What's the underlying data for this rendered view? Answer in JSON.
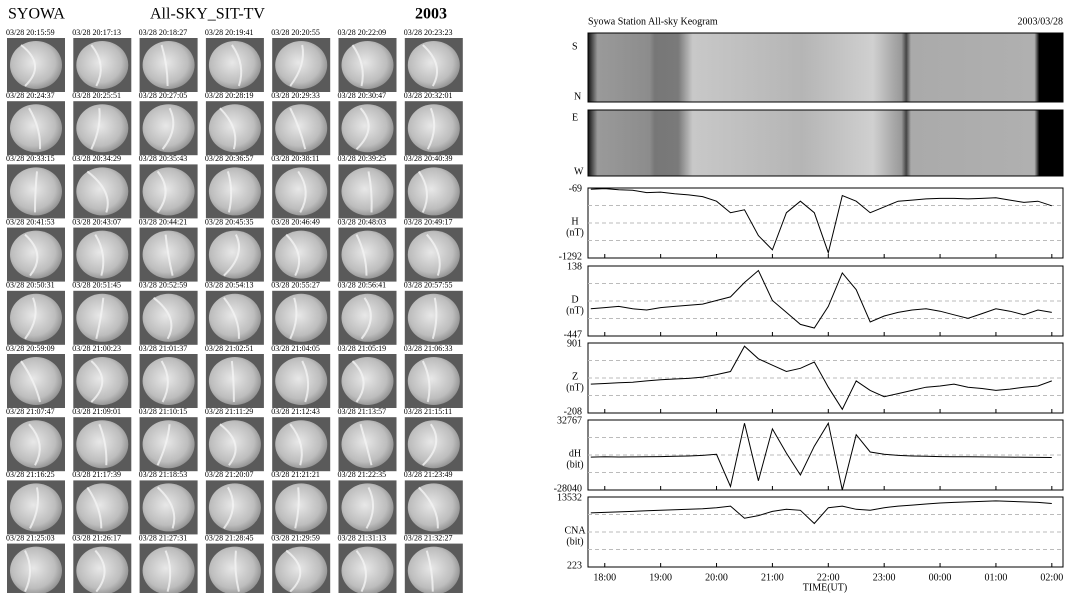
{
  "allsky": {
    "station": "SYOWA",
    "title": "All-SKY_SIT-TV",
    "year": "2003",
    "frames": [
      "03/28 20:15:59",
      "03/28 20:17:13",
      "03/28 20:18:27",
      "03/28 20:19:41",
      "03/28 20:20:55",
      "03/28 20:22:09",
      "03/28 20:23:23",
      "03/28 20:24:37",
      "03/28 20:25:51",
      "03/28 20:27:05",
      "03/28 20:28:19",
      "03/28 20:29:33",
      "03/28 20:30:47",
      "03/28 20:32:01",
      "03/28 20:33:15",
      "03/28 20:34:29",
      "03/28 20:35:43",
      "03/28 20:36:57",
      "03/28 20:38:11",
      "03/28 20:39:25",
      "03/28 20:40:39",
      "03/28 20:41:53",
      "03/28 20:43:07",
      "03/28 20:44:21",
      "03/28 20:45:35",
      "03/28 20:46:49",
      "03/28 20:48:03",
      "03/28 20:49:17",
      "03/28 20:50:31",
      "03/28 20:51:45",
      "03/28 20:52:59",
      "03/28 20:54:13",
      "03/28 20:55:27",
      "03/28 20:56:41",
      "03/28 20:57:55",
      "03/28 20:59:09",
      "03/28 21:00:23",
      "03/28 21:01:37",
      "03/28 21:02:51",
      "03/28 21:04:05",
      "03/28 21:05:19",
      "03/28 21:06:33",
      "03/28 21:07:47",
      "03/28 21:09:01",
      "03/28 21:10:15",
      "03/28 21:11:29",
      "03/28 21:12:43",
      "03/28 21:13:57",
      "03/28 21:15:11",
      "03/28 21:16:25",
      "03/28 21:17:39",
      "03/28 21:18:53",
      "03/28 21:20:07",
      "03/28 21:21:21",
      "03/28 21:22:35",
      "03/28 21:23:49",
      "03/28 21:25:03",
      "03/28 21:26:17",
      "03/28 21:27:31",
      "03/28 21:28:45",
      "03/28 21:29:59",
      "03/28 21:31:13",
      "03/28 21:32:27"
    ]
  },
  "chart_data": {
    "type": "line",
    "title": "Syowa Station All-sky Keogram",
    "date": "2003/03/28",
    "keogram": {
      "top": [
        "S",
        "N"
      ],
      "bottom": [
        "E",
        "W"
      ]
    },
    "xlabel": "TIME(UT)",
    "xlim": [
      17.7,
      26.2
    ],
    "xticks": [
      {
        "value": 18,
        "label": "18:00"
      },
      {
        "value": 19,
        "label": "19:00"
      },
      {
        "value": 20,
        "label": "20:00"
      },
      {
        "value": 21,
        "label": "21:00"
      },
      {
        "value": 22,
        "label": "22:00"
      },
      {
        "value": 23,
        "label": "23:00"
      },
      {
        "value": 24,
        "label": "00:00"
      },
      {
        "value": 25,
        "label": "01:00"
      },
      {
        "value": 26,
        "label": "02:00"
      }
    ],
    "x": [
      17.75,
      18,
      18.25,
      18.5,
      18.75,
      19,
      19.25,
      19.5,
      19.75,
      20,
      20.25,
      20.5,
      20.75,
      21,
      21.25,
      21.5,
      21.75,
      22,
      22.25,
      22.5,
      22.75,
      23,
      23.25,
      23.5,
      23.75,
      24,
      24.25,
      24.5,
      24.75,
      25,
      25.25,
      25.5,
      25.75,
      26
    ],
    "color": "#000000",
    "panels": [
      {
        "name": "H",
        "unit": "(nT)",
        "ylim": [
          -1292,
          -69
        ],
        "values": [
          -90,
          -80,
          -100,
          -110,
          -150,
          -140,
          -170,
          -190,
          -220,
          -300,
          -500,
          -450,
          -900,
          -1150,
          -500,
          -300,
          -500,
          -1200,
          -200,
          -300,
          -500,
          -400,
          -300,
          -280,
          -260,
          -250,
          -250,
          -260,
          -250,
          -240,
          -280,
          -320,
          -300,
          -380
        ]
      },
      {
        "name": "D",
        "unit": "(nT)",
        "ylim": [
          -447,
          138
        ],
        "values": [
          -220,
          -210,
          -200,
          -220,
          -230,
          -210,
          -200,
          -190,
          -180,
          -150,
          -120,
          0,
          100,
          -150,
          -250,
          -350,
          -380,
          -200,
          80,
          -60,
          -330,
          -280,
          -250,
          -230,
          -220,
          -240,
          -270,
          -300,
          -260,
          -220,
          -240,
          -270,
          -230,
          -250
        ]
      },
      {
        "name": "Z",
        "unit": "(nT)",
        "ylim": [
          -208,
          901
        ],
        "values": [
          250,
          260,
          270,
          280,
          300,
          320,
          330,
          340,
          360,
          400,
          450,
          850,
          650,
          550,
          450,
          500,
          600,
          200,
          -150,
          300,
          150,
          50,
          100,
          150,
          200,
          220,
          250,
          200,
          180,
          150,
          170,
          200,
          220,
          300
        ]
      },
      {
        "name": "dH",
        "unit": "(bit)",
        "ylim": [
          -28040,
          32767
        ],
        "values": [
          500,
          800,
          600,
          700,
          900,
          1000,
          1200,
          1500,
          2000,
          3000,
          -25000,
          30000,
          -20000,
          25000,
          4000,
          -15000,
          10000,
          30000,
          -28000,
          20000,
          5000,
          3000,
          2000,
          1500,
          1200,
          1000,
          800,
          900,
          700,
          600,
          500,
          400,
          300,
          200
        ]
      },
      {
        "name": "CNA",
        "unit": "(bit)",
        "ylim": [
          223,
          13532
        ],
        "values": [
          10500,
          10600,
          10700,
          10800,
          10900,
          11000,
          11100,
          11200,
          11300,
          11500,
          11800,
          9500,
          10000,
          10800,
          11200,
          11000,
          8500,
          11500,
          11800,
          11200,
          11000,
          11500,
          11800,
          12000,
          12200,
          12400,
          12500,
          12600,
          12700,
          12800,
          12700,
          12600,
          12500,
          12300
        ]
      }
    ]
  }
}
